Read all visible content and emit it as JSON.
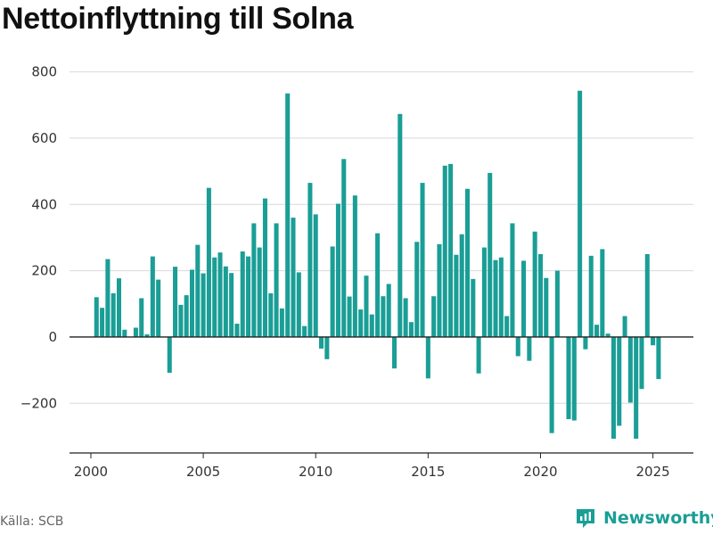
{
  "title": "Nettoinflyttning till Solna",
  "source": "Källa: SCB",
  "brand": "Newsworthy",
  "colors": {
    "bar": "#1a9e96",
    "grid": "#d9d9d9",
    "axis": "#222222",
    "brand": "#1a9e96"
  },
  "chart_data": {
    "type": "bar",
    "title": "Nettoinflyttning till Solna",
    "xlabel": "",
    "ylabel": "",
    "ylim": [
      -350,
      850
    ],
    "yticks": [
      800,
      600,
      400,
      200,
      0,
      -200
    ],
    "ytick_labels": [
      "800",
      "600",
      "400",
      "200",
      "0",
      "−200"
    ],
    "xlim": [
      1999.05,
      2026.8
    ],
    "xticks": [
      2000,
      2005,
      2010,
      2015,
      2020,
      2025
    ],
    "xtick_labels": [
      "2000",
      "2005",
      "2010",
      "2015",
      "2020",
      "2025"
    ],
    "grid": true,
    "legend": "none",
    "bar_width_years": 0.2,
    "x": [
      2000.25,
      2000.5,
      2000.75,
      2001.0,
      2001.25,
      2001.5,
      2001.75,
      2002.0,
      2002.25,
      2002.5,
      2002.75,
      2003.0,
      2003.25,
      2003.5,
      2003.75,
      2004.0,
      2004.25,
      2004.5,
      2004.75,
      2005.0,
      2005.25,
      2005.5,
      2005.75,
      2006.0,
      2006.25,
      2006.5,
      2006.75,
      2007.0,
      2007.25,
      2007.5,
      2007.75,
      2008.0,
      2008.25,
      2008.5,
      2008.75,
      2009.0,
      2009.25,
      2009.5,
      2009.75,
      2010.0,
      2010.25,
      2010.5,
      2010.75,
      2011.0,
      2011.25,
      2011.5,
      2011.75,
      2012.0,
      2012.25,
      2012.5,
      2012.75,
      2013.0,
      2013.25,
      2013.5,
      2013.75,
      2014.0,
      2014.25,
      2014.5,
      2014.75,
      2015.0,
      2015.25,
      2015.5,
      2015.75,
      2016.0,
      2016.25,
      2016.5,
      2016.75,
      2017.0,
      2017.25,
      2017.5,
      2017.75,
      2018.0,
      2018.25,
      2018.5,
      2018.75,
      2019.0,
      2019.25,
      2019.5,
      2019.75,
      2020.0,
      2020.25,
      2020.5,
      2020.75,
      2021.0,
      2021.25,
      2021.5,
      2021.75,
      2022.0,
      2022.25,
      2022.5,
      2022.75,
      2023.0,
      2023.25,
      2023.5,
      2023.75,
      2024.0,
      2024.25,
      2024.5,
      2024.75,
      2025.0,
      2025.25
    ],
    "values": [
      120,
      88,
      235,
      132,
      177,
      22,
      0,
      28,
      117,
      8,
      243,
      173,
      0,
      -108,
      212,
      97,
      126,
      203,
      278,
      192,
      450,
      240,
      255,
      213,
      193,
      40,
      258,
      243,
      343,
      270,
      418,
      132,
      343,
      86,
      735,
      360,
      195,
      33,
      465,
      370,
      -35,
      -67,
      273,
      402,
      537,
      122,
      427,
      83,
      185,
      68,
      313,
      123,
      160,
      -95,
      673,
      117,
      45,
      287,
      465,
      -125,
      123,
      280,
      517,
      522,
      248,
      310,
      447,
      175,
      -110,
      270,
      495,
      232,
      240,
      63,
      343,
      -58,
      230,
      -72,
      318,
      250,
      178,
      -290,
      200,
      0,
      -248,
      -252,
      743,
      -37,
      245,
      37,
      265,
      10,
      -307,
      -268,
      63,
      -198,
      -307,
      -157,
      250,
      -25,
      -127
    ]
  }
}
